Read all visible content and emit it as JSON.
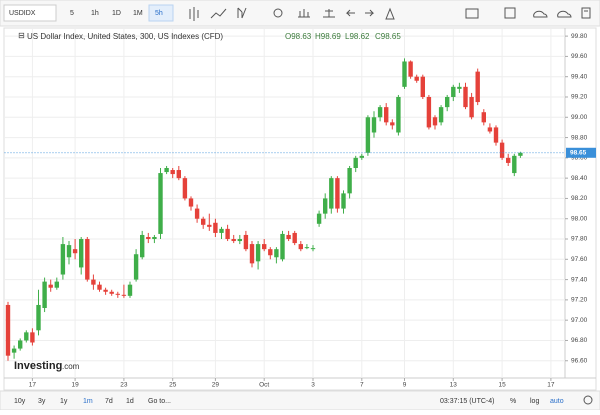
{
  "toolbar": {
    "symbol": "USDIDX",
    "intervals": [
      "5",
      "1h",
      "1D",
      "1M",
      "5h"
    ]
  },
  "footer": {
    "ranges": [
      "10y",
      "3y",
      "1y",
      "1m",
      "7d",
      "1d"
    ],
    "goto": "Go to...",
    "time": "03:37:15 (UTC-4)",
    "options": [
      "%",
      "log",
      "auto"
    ],
    "logo": "Investing",
    "logo_suffix": ".com"
  },
  "chart_data": {
    "type": "candlestick",
    "title": "US Dollar Index, United States, 300, US Indexes (CFD)",
    "ohlc_labels": [
      "O98.63",
      "H98.69",
      "L98.62",
      "C98.65"
    ],
    "categories": [
      null,
      null,
      null,
      null,
      "17",
      null,
      null,
      null,
      null,
      null,
      null,
      "19",
      null,
      null,
      null,
      null,
      null,
      null,
      null,
      "23",
      null,
      null,
      null,
      null,
      null,
      null,
      null,
      "25",
      null,
      null,
      null,
      null,
      null,
      null,
      "29",
      null,
      null,
      null,
      null,
      null,
      null,
      null,
      "Oct",
      null,
      null,
      null,
      null,
      null,
      null,
      null,
      "3",
      null,
      null,
      null,
      null,
      null,
      null,
      null,
      "7",
      null,
      null,
      null,
      null,
      null,
      null,
      "9",
      null,
      null,
      null,
      null,
      null,
      null,
      null,
      "13",
      null,
      null,
      null,
      null,
      null,
      null,
      null,
      "15",
      null,
      null,
      null,
      null,
      null,
      null,
      null,
      "17",
      null,
      null
    ],
    "open": [
      97.15,
      96.68,
      96.72,
      96.8,
      96.88,
      96.9,
      97.12,
      97.35,
      97.32,
      97.45,
      97.62,
      97.7,
      97.52,
      97.8,
      97.4,
      97.35,
      97.3,
      97.28,
      97.26,
      97.25,
      97.24,
      97.4,
      97.62,
      97.82,
      97.8,
      97.85,
      98.46,
      98.48,
      98.48,
      98.4,
      98.2,
      98.1,
      98.0,
      97.94,
      97.96,
      97.86,
      97.9,
      97.8,
      97.78,
      97.84,
      97.75,
      97.58,
      97.75,
      97.7,
      97.62,
      97.6,
      97.84,
      97.86,
      97.75,
      97.72,
      97.7,
      97.95,
      98.05,
      98.1,
      98.4,
      98.1,
      98.25,
      98.5,
      98.6,
      98.65,
      98.85,
      99.0,
      99.1,
      98.95,
      98.85,
      99.3,
      99.55,
      99.4,
      99.4,
      99.2,
      99.0,
      98.95,
      99.1,
      99.2,
      99.28,
      99.3,
      99.2,
      99.45,
      99.05,
      98.9,
      98.9,
      98.75,
      98.6,
      98.45,
      98.62,
      null,
      null,
      null,
      null,
      null,
      null,
      null
    ],
    "high": [
      97.18,
      96.75,
      96.82,
      96.9,
      96.92,
      97.3,
      97.42,
      97.4,
      97.42,
      97.82,
      97.78,
      97.8,
      97.82,
      97.82,
      97.45,
      97.38,
      97.32,
      97.3,
      97.28,
      97.35,
      97.38,
      97.7,
      97.88,
      97.86,
      97.84,
      98.5,
      98.52,
      98.5,
      98.52,
      98.42,
      98.22,
      98.14,
      98.02,
      98.05,
      98.0,
      97.92,
      97.94,
      97.84,
      97.84,
      97.88,
      97.78,
      97.78,
      97.8,
      97.72,
      97.72,
      97.88,
      97.88,
      97.88,
      97.78,
      97.75,
      97.74,
      98.08,
      98.25,
      98.42,
      98.42,
      98.28,
      98.52,
      98.62,
      98.64,
      99.02,
      99.06,
      99.12,
      99.14,
      98.98,
      99.22,
      99.58,
      99.56,
      99.42,
      99.42,
      99.22,
      99.02,
      99.12,
      99.22,
      99.32,
      99.34,
      99.34,
      99.24,
      99.48,
      99.08,
      98.94,
      98.92,
      98.78,
      98.64,
      98.64,
      98.66,
      null,
      null,
      null,
      null,
      null,
      null,
      null
    ],
    "low": [
      96.6,
      96.62,
      96.7,
      96.78,
      96.75,
      96.85,
      97.08,
      97.28,
      97.3,
      97.4,
      97.55,
      97.6,
      97.45,
      97.38,
      97.3,
      97.28,
      97.25,
      97.24,
      97.22,
      97.22,
      97.22,
      97.38,
      97.6,
      97.76,
      97.76,
      97.8,
      98.44,
      98.4,
      98.38,
      98.18,
      98.08,
      97.96,
      97.9,
      97.88,
      97.82,
      97.8,
      97.78,
      97.76,
      97.75,
      97.68,
      97.52,
      97.5,
      97.68,
      97.6,
      97.56,
      97.58,
      97.78,
      97.74,
      97.68,
      97.7,
      97.68,
      97.92,
      98.0,
      98.05,
      98.06,
      98.05,
      98.2,
      98.46,
      98.58,
      98.62,
      98.8,
      98.96,
      98.92,
      98.88,
      98.82,
      99.28,
      99.38,
      99.34,
      99.18,
      98.88,
      98.88,
      98.92,
      99.06,
      99.16,
      99.24,
      99.08,
      98.98,
      99.12,
      98.92,
      98.84,
      98.72,
      98.58,
      98.52,
      98.42,
      98.6,
      null,
      null,
      null,
      null,
      null,
      null,
      null
    ],
    "close": [
      96.65,
      96.72,
      96.8,
      96.88,
      96.78,
      97.15,
      97.38,
      97.32,
      97.38,
      97.75,
      97.74,
      97.66,
      97.8,
      97.4,
      97.35,
      97.3,
      97.28,
      97.26,
      97.25,
      97.24,
      97.35,
      97.65,
      97.84,
      97.8,
      97.82,
      98.45,
      98.5,
      98.44,
      98.4,
      98.2,
      98.12,
      98.0,
      97.94,
      97.92,
      97.86,
      97.9,
      97.8,
      97.78,
      97.8,
      97.7,
      97.56,
      97.75,
      97.7,
      97.64,
      97.7,
      97.85,
      97.8,
      97.76,
      97.7,
      97.72,
      97.71,
      98.05,
      98.2,
      98.4,
      98.1,
      98.25,
      98.5,
      98.6,
      98.62,
      99.0,
      99.0,
      99.1,
      98.95,
      98.92,
      99.2,
      99.55,
      99.4,
      99.36,
      99.2,
      98.9,
      98.92,
      99.1,
      99.2,
      99.3,
      99.3,
      99.1,
      99.0,
      99.15,
      98.95,
      98.86,
      98.75,
      98.6,
      98.55,
      98.62,
      98.65,
      null,
      null,
      null,
      null,
      null,
      null,
      null
    ],
    "up_color": "#3fae49",
    "down_color": "#e5413a",
    "last_price": 98.65,
    "last_price_color": "#3a8fd9",
    "ylim": [
      96.43,
      99.88
    ],
    "yticks": [
      {
        "value": 96.6,
        "label": "96.60"
      },
      {
        "value": 96.8,
        "label": "96.80"
      },
      {
        "value": 97.0,
        "label": "97.00"
      },
      {
        "value": 97.2,
        "label": "97.20"
      },
      {
        "value": 97.4,
        "label": "97.40"
      },
      {
        "value": 97.6,
        "label": "97.60"
      },
      {
        "value": 97.8,
        "label": "97.80"
      },
      {
        "value": 98.0,
        "label": "98.00"
      },
      {
        "value": 98.2,
        "label": "98.20"
      },
      {
        "value": 98.4,
        "label": "98.40"
      },
      {
        "value": 98.6,
        "label": "98.60"
      },
      {
        "value": 98.8,
        "label": "98.80"
      },
      {
        "value": 99.0,
        "label": "99.00"
      },
      {
        "value": 99.2,
        "label": "99.20"
      },
      {
        "value": 99.4,
        "label": "99.40"
      },
      {
        "value": 99.6,
        "label": "99.60"
      },
      {
        "value": 99.8,
        "label": "99.80"
      }
    ],
    "grid": true
  }
}
